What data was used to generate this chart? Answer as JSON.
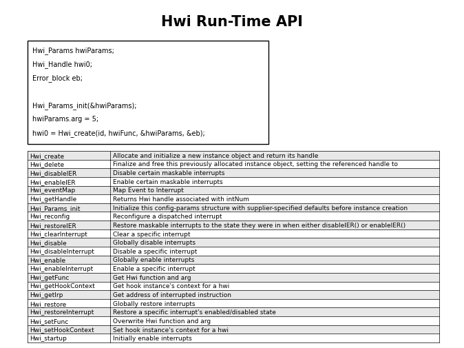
{
  "title": "Hwi Run-Time API",
  "code_box": [
    "Hwi_Params hwiParams;",
    "Hwi_Handle hwi0;",
    "Error_block eb;",
    "",
    "Hwi_Params_init(&hwiParams);",
    "hwiParams.arg = 5;",
    "hwi0 = Hwi_create(id, hwiFunc, &hwiParams, &eb);"
  ],
  "table_rows": [
    [
      "Hwi_create",
      "Allocate and initialize a new instance object and return its handle"
    ],
    [
      "Hwi_delete",
      "Finalize and free this previously allocated instance object, setting the referenced handle to"
    ],
    [
      "Hwi_disableIER",
      "Disable certain maskable interrupts"
    ],
    [
      "Hwi_enableIER",
      "Enable certain maskable interrupts"
    ],
    [
      "Hwi_eventMap",
      "Map Event to Interrupt"
    ],
    [
      "Hwi_getHandle",
      "Returns Hwi handle associated with intNum"
    ],
    [
      "Hwi_Params_init",
      "Initialize this config-params structure with supplier-specified defaults before instance creation"
    ],
    [
      "Hwi_reconfig",
      "Reconfigure a dispatched interrupt"
    ],
    [
      "Hwi_restoreIER",
      "Restore maskable interrupts to the state they were in when either disableIER() or enableIER()"
    ],
    [
      "Hwi_clearInterrupt",
      "Clear a specific interrupt"
    ],
    [
      "Hwi_disable",
      "Globally disable interrupts"
    ],
    [
      "Hwi_disableInterrupt",
      "Disable a specific interrupt"
    ],
    [
      "Hwi_enable",
      "Globally enable interrupts"
    ],
    [
      "Hwi_enableInterrupt",
      "Enable a specific interrupt"
    ],
    [
      "Hwi_getFunc",
      "Get Hwi function and arg"
    ],
    [
      "Hwi_getHookContext",
      "Get hook instance's context for a hwi"
    ],
    [
      "Hwi_getIrp",
      "Get address of interrupted instruction"
    ],
    [
      "Hwi_restore",
      "Globally restore interrupts"
    ],
    [
      "Hwi_restoreInterrupt",
      "Restore a specific interrupt's enabled/disabled state"
    ],
    [
      "Hwi_setFunc",
      "Overwrite Hwi function and arg"
    ],
    [
      "Hwi_setHookContext",
      "Set hook instance's context for a hwi"
    ],
    [
      "Hwi_startup",
      "Initially enable interrupts"
    ]
  ],
  "bg_color": "#ffffff",
  "border_color": "#000000",
  "code_bg": "#ffffff",
  "table_row_bg1": "#e8e8e8",
  "table_row_bg2": "#ffffff",
  "title_fontsize": 15,
  "code_fontsize": 7,
  "table_fontsize": 6.5
}
